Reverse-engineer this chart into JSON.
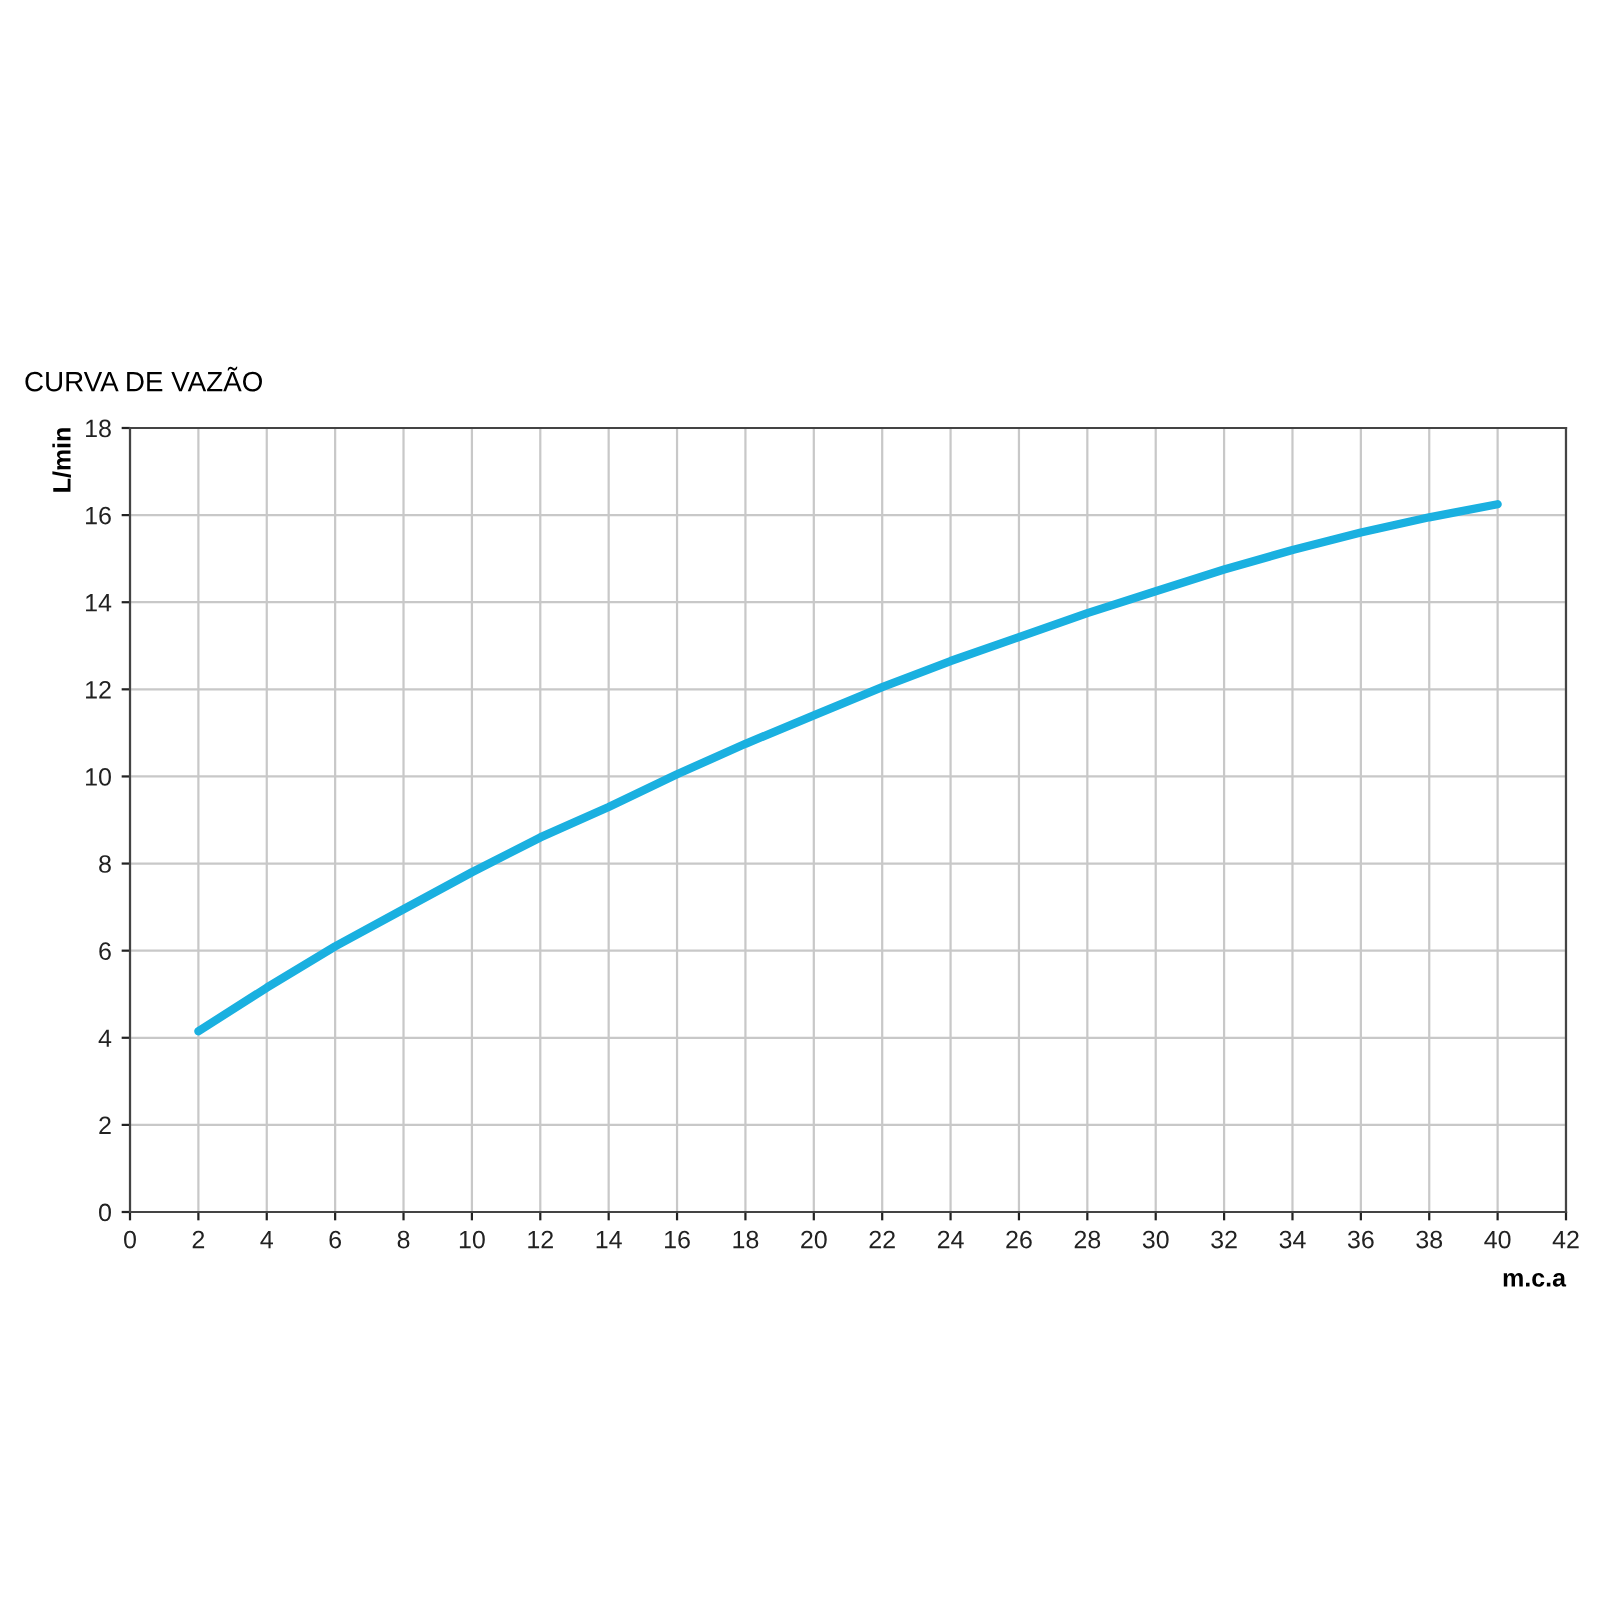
{
  "chart_data": {
    "type": "line",
    "title": "CURVA DE VAZÃO",
    "xlabel": "m.c.a",
    "ylabel": "L/min",
    "x": [
      2,
      4,
      6,
      8,
      10,
      12,
      14,
      16,
      18,
      20,
      22,
      24,
      26,
      28,
      30,
      32,
      34,
      36,
      38,
      40
    ],
    "series": [
      {
        "color": "#1ab0e0",
        "values": [
          4.15,
          5.15,
          6.1,
          6.95,
          7.8,
          8.6,
          9.3,
          10.05,
          10.75,
          11.4,
          12.05,
          12.65,
          13.2,
          13.75,
          14.25,
          14.75,
          15.2,
          15.6,
          15.95,
          16.25
        ]
      }
    ],
    "xlim": [
      0,
      42
    ],
    "xticks": [
      0,
      2,
      4,
      6,
      8,
      10,
      12,
      14,
      16,
      18,
      20,
      22,
      24,
      26,
      28,
      30,
      32,
      34,
      36,
      38,
      40,
      42
    ],
    "ylim": [
      0,
      18
    ],
    "yticks": [
      0,
      2,
      4,
      6,
      8,
      10,
      12,
      14,
      16,
      18
    ],
    "grid": true,
    "marker": "none",
    "line_style": "solid"
  }
}
